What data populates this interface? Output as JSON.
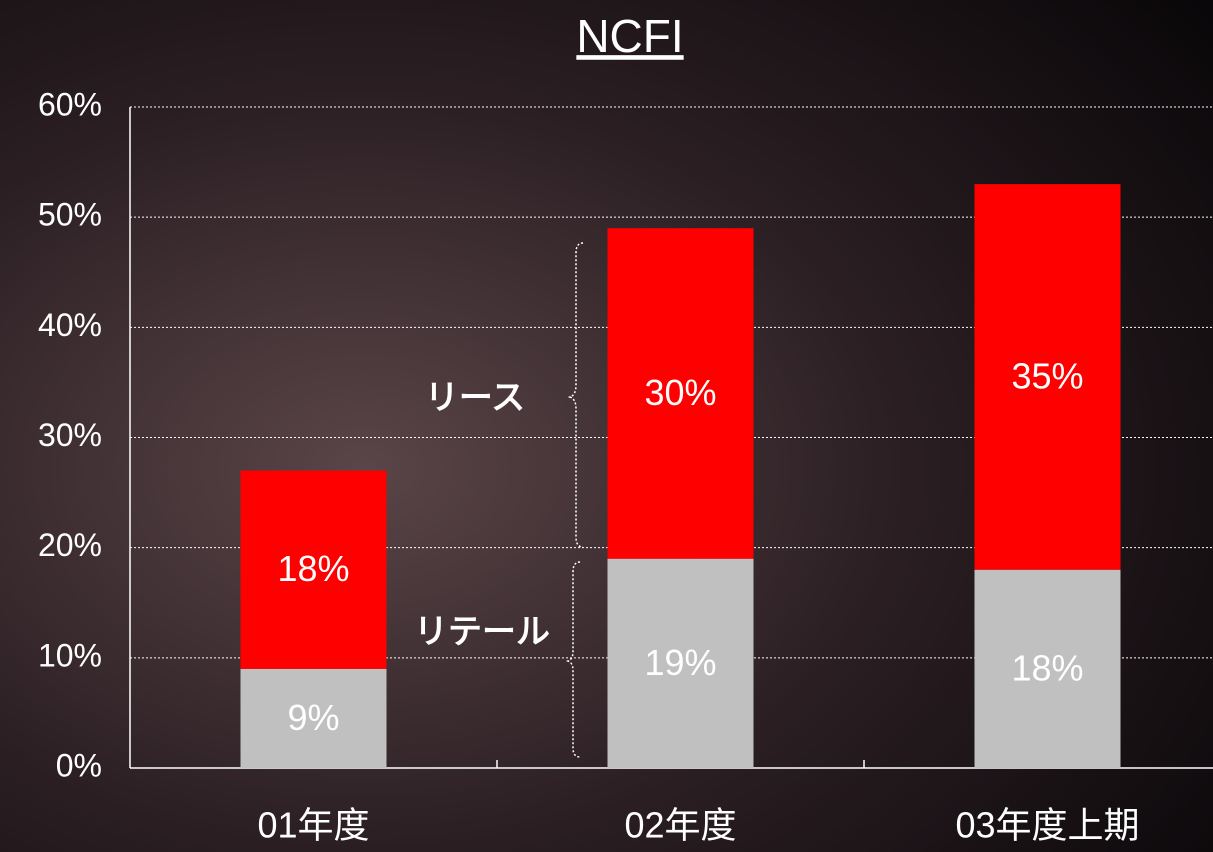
{
  "chart_data": {
    "type": "stacked_bar",
    "title": "NCFI",
    "categories": [
      "01年度",
      "02年度",
      "03年度上期"
    ],
    "series": [
      {
        "name": "リテール",
        "color": "#c0c0c0",
        "values": [
          9,
          19,
          18
        ],
        "value_labels": [
          "9%",
          "19%",
          "18%"
        ]
      },
      {
        "name": "リース",
        "color": "#ff0000",
        "values": [
          18,
          30,
          35
        ],
        "value_labels": [
          "18%",
          "30%",
          "35%"
        ]
      }
    ],
    "ylim": [
      0,
      60
    ],
    "yticks": [
      {
        "value": 0,
        "label": "0%"
      },
      {
        "value": 10,
        "label": "10%"
      },
      {
        "value": 20,
        "label": "20%"
      },
      {
        "value": 30,
        "label": "30%"
      },
      {
        "value": 40,
        "label": "40%"
      },
      {
        "value": 50,
        "label": "50%"
      },
      {
        "value": 60,
        "label": "60%"
      }
    ],
    "grid": true
  }
}
